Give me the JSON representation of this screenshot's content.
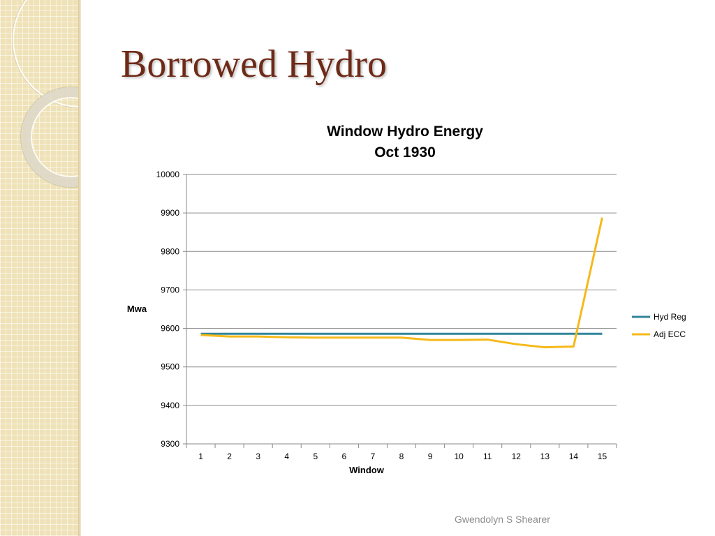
{
  "slide": {
    "title": "Borrowed Hydro",
    "footer": "Gwendolyn S Shearer"
  },
  "colors": {
    "title": "#6e2a17",
    "hyd_reg": "#31869b",
    "adj_ecc": "#f6b91a",
    "sidebar": "#efe2b8"
  },
  "chart_data": {
    "type": "line",
    "title": "Window Hydro Energy",
    "subtitle": "Oct 1930",
    "xlabel": "Window",
    "ylabel": "Mwa",
    "categories": [
      "1",
      "2",
      "3",
      "4",
      "5",
      "6",
      "7",
      "8",
      "9",
      "10",
      "11",
      "12",
      "13",
      "14",
      "15"
    ],
    "ylim": [
      9300,
      10000
    ],
    "yticks": [
      9300,
      9400,
      9500,
      9600,
      9700,
      9800,
      9900,
      10000
    ],
    "grid": true,
    "legend_position": "right",
    "series": [
      {
        "name": "Hyd Reg",
        "color": "#31869b",
        "values": [
          9586,
          9586,
          9586,
          9586,
          9586,
          9586,
          9586,
          9586,
          9586,
          9586,
          9586,
          9586,
          9586,
          9586,
          9586
        ]
      },
      {
        "name": "Adj ECC",
        "color": "#f6b91a",
        "values": [
          9583,
          9579,
          9579,
          9577,
          9576,
          9576,
          9576,
          9576,
          9570,
          9570,
          9571,
          9559,
          9551,
          9553,
          9888
        ]
      }
    ]
  }
}
